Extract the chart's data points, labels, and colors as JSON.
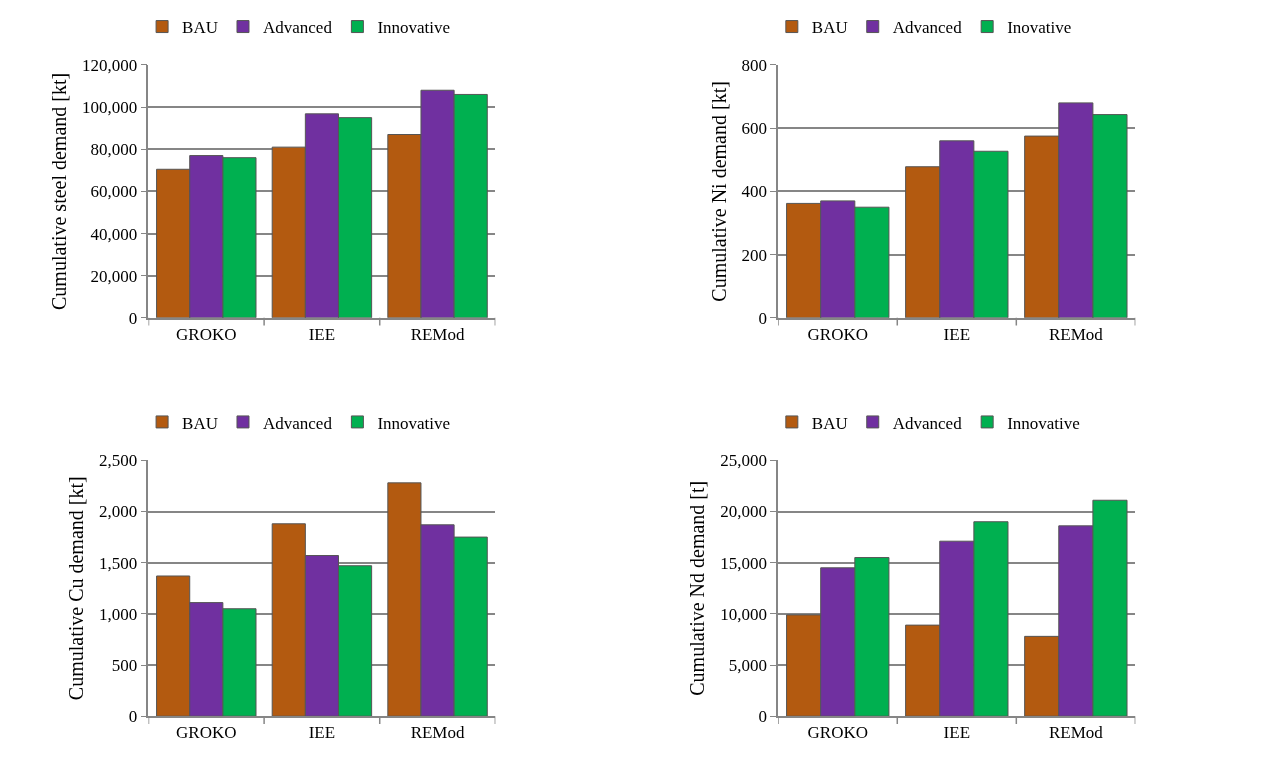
{
  "chart_data": [
    {
      "type": "bar",
      "ylabel": "Cumulative steel demand [kt]",
      "categories": [
        "GROKO",
        "IEE",
        "REMod"
      ],
      "ylim": [
        0,
        120000
      ],
      "yticks": [
        {
          "value": 0,
          "label": "0"
        },
        {
          "value": 20000,
          "label": "20,000"
        },
        {
          "value": 40000,
          "label": "40,000"
        },
        {
          "value": 60000,
          "label": "60,000"
        },
        {
          "value": 80000,
          "label": "80,000"
        },
        {
          "value": 100000,
          "label": "100,000"
        },
        {
          "value": 120000,
          "label": "120,000"
        }
      ],
      "grid": "y",
      "legend": "top",
      "series": [
        {
          "name": "BAU",
          "color": "#b35a10",
          "values": [
            70500,
            81000,
            87000
          ]
        },
        {
          "name": "Advanced",
          "color": "#7030a0",
          "values": [
            77000,
            96800,
            108000
          ]
        },
        {
          "name": "Innovative",
          "color": "#00b050",
          "values": [
            76000,
            95000,
            106000
          ]
        }
      ]
    },
    {
      "type": "bar",
      "ylabel": "Cumulative Ni demand [kt]",
      "categories": [
        "GROKO",
        "IEE",
        "REMod"
      ],
      "ylim": [
        0,
        800
      ],
      "yticks": [
        0,
        200,
        400,
        600,
        800
      ],
      "grid": "y",
      "legend": "top",
      "series": [
        {
          "name": "BAU",
          "color": "#b35a10",
          "values": [
            362,
            478,
            575
          ]
        },
        {
          "name": "Advanced",
          "color": "#7030a0",
          "values": [
            370,
            560,
            680
          ]
        },
        {
          "name": "Inovative",
          "color": "#00b050",
          "values": [
            350,
            527,
            643
          ]
        }
      ]
    },
    {
      "type": "bar",
      "ylabel": "Cumulative Cu demand [kt]",
      "categories": [
        "GROKO",
        "IEE",
        "REMod"
      ],
      "ylim": [
        0,
        2500
      ],
      "yticks": [
        {
          "value": 0,
          "label": "0"
        },
        {
          "value": 500,
          "label": "500"
        },
        {
          "value": 1000,
          "label": "1,000"
        },
        {
          "value": 1500,
          "label": "1,500"
        },
        {
          "value": 2000,
          "label": "2,000"
        },
        {
          "value": 2500,
          "label": "2,500"
        }
      ],
      "grid": "y",
      "legend": "top",
      "series": [
        {
          "name": "BAU",
          "color": "#b35a10",
          "values": [
            1370,
            1880,
            2280
          ]
        },
        {
          "name": "Advanced",
          "color": "#7030a0",
          "values": [
            1110,
            1570,
            1870
          ]
        },
        {
          "name": "Innovative",
          "color": "#00b050",
          "values": [
            1050,
            1470,
            1750
          ]
        }
      ]
    },
    {
      "type": "bar",
      "ylabel": "Cumulative Nd demand [t]",
      "categories": [
        "GROKO",
        "IEE",
        "REMod"
      ],
      "ylim": [
        0,
        25000
      ],
      "yticks": [
        {
          "value": 0,
          "label": "0"
        },
        {
          "value": 5000,
          "label": "5,000"
        },
        {
          "value": 10000,
          "label": "10,000"
        },
        {
          "value": 15000,
          "label": "15,000"
        },
        {
          "value": 20000,
          "label": "20,000"
        },
        {
          "value": 25000,
          "label": "25,000"
        }
      ],
      "grid": "y",
      "legend": "top",
      "series": [
        {
          "name": "BAU",
          "color": "#b35a10",
          "values": [
            9900,
            8900,
            7800
          ]
        },
        {
          "name": "Advanced",
          "color": "#7030a0",
          "values": [
            14500,
            17100,
            18600
          ]
        },
        {
          "name": "Innovative",
          "color": "#00b050",
          "values": [
            15500,
            19000,
            21100
          ]
        }
      ]
    }
  ]
}
